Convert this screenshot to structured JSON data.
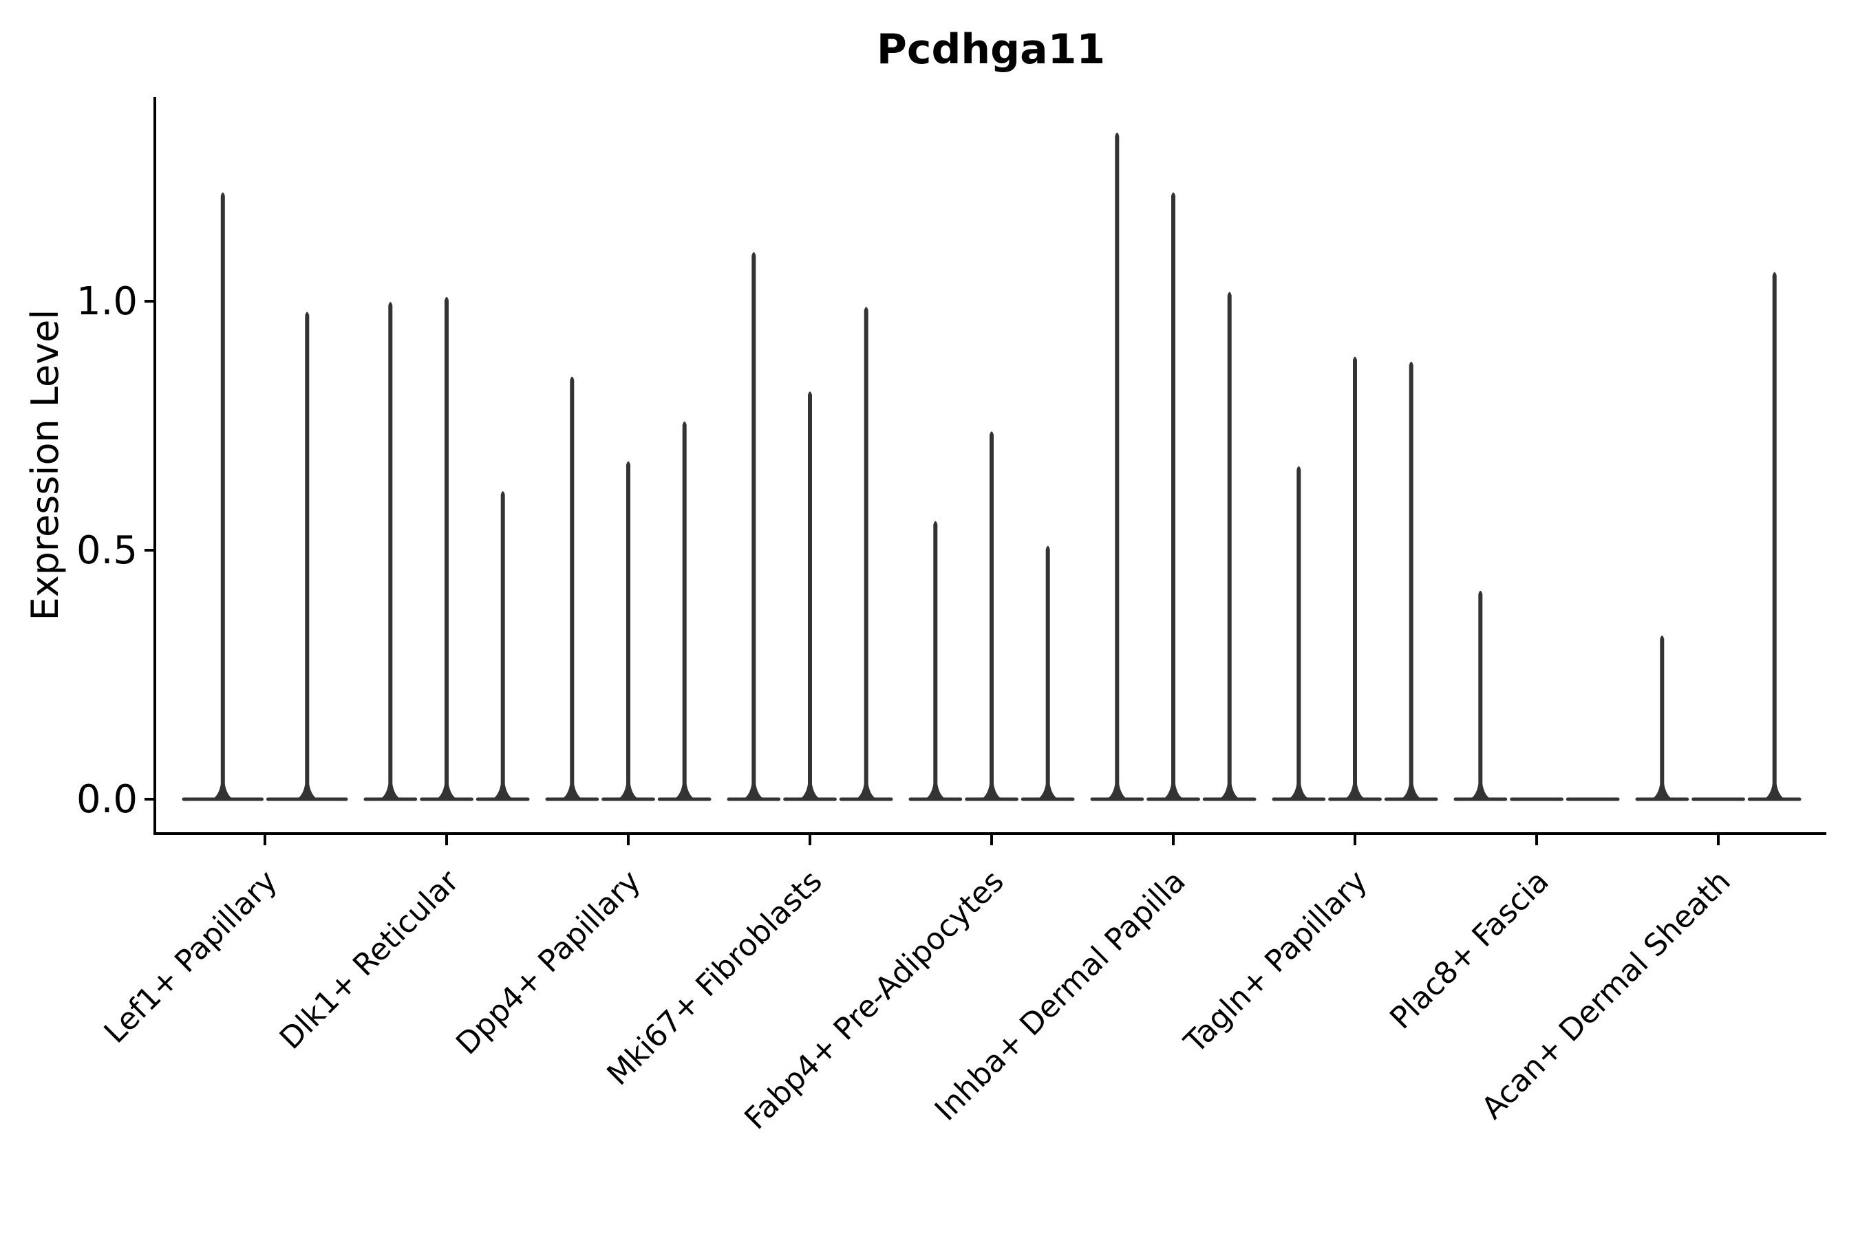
{
  "chart_data": {
    "type": "violin",
    "title": "Pcdhga11",
    "xlabel": "",
    "ylabel": "Expression Level",
    "ylim": [
      -0.07,
      1.41
    ],
    "ytick_labels": [
      "0.0",
      "0.5",
      "1.0"
    ],
    "ytick_values": [
      0.0,
      0.5,
      1.0
    ],
    "grid": false,
    "legend_position": "none",
    "colors": {
      "violin": "#333333",
      "axis": "#000000",
      "text": "#000000",
      "background": "#ffffff"
    },
    "categories": [
      "Lef1+ Papillary",
      "Dlk1+ Reticular",
      "Dpp4+ Papillary",
      "Mki67+ Fibroblasts",
      "Fabp4+ Pre-Adipocytes",
      "Inhba+ Dermal Papilla",
      "Tagln+ Papillary",
      "Plac8+ Fascia",
      "Acan+ Dermal Sheath"
    ],
    "groups": [
      {
        "category": "Lef1+ Papillary",
        "violin_peaks": [
          1.22,
          0.98
        ]
      },
      {
        "category": "Dlk1+ Reticular",
        "violin_peaks": [
          1.0,
          1.01,
          0.62
        ]
      },
      {
        "category": "Dpp4+ Papillary",
        "violin_peaks": [
          0.85,
          0.68,
          0.76
        ]
      },
      {
        "category": "Mki67+ Fibroblasts",
        "violin_peaks": [
          1.1,
          0.82,
          0.99
        ]
      },
      {
        "category": "Fabp4+ Pre-Adipocytes",
        "violin_peaks": [
          0.56,
          0.74,
          0.51
        ]
      },
      {
        "category": "Inhba+ Dermal Papilla",
        "violin_peaks": [
          1.34,
          1.22,
          1.02
        ]
      },
      {
        "category": "Tagln+ Papillary",
        "violin_peaks": [
          0.67,
          0.89,
          0.88
        ]
      },
      {
        "category": "Plac8+ Fascia",
        "violin_peaks": [
          0.42,
          0,
          0
        ]
      },
      {
        "category": "Acan+ Dermal Sheath",
        "violin_peaks": [
          0.33,
          0,
          1.06
        ]
      }
    ]
  }
}
